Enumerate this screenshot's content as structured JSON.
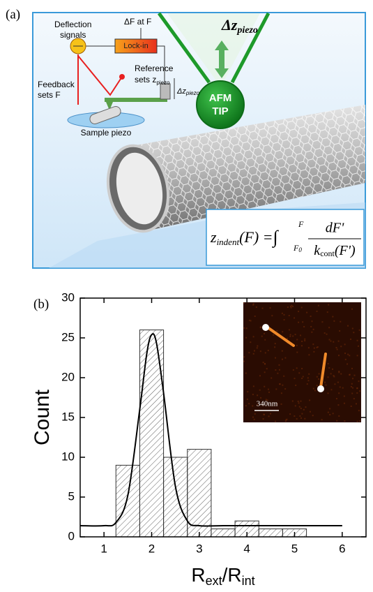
{
  "diagram": {
    "panel_label": "(a)",
    "deflection": [
      "Deflection",
      "signals"
    ],
    "delta_f": "ΔF at F",
    "lockin": "Lock-in",
    "reference": [
      "Reference",
      "sets z",
      "piezo"
    ],
    "feedback": [
      "Feedback",
      "sets F"
    ],
    "small_dz": [
      "Δz",
      "piezo"
    ],
    "sample_piezo": "Sample piezo",
    "big_dz": [
      "Δz",
      "piezo"
    ],
    "tip": [
      "AFM",
      "TIP"
    ],
    "formula": {
      "lhs": "z",
      "lhs_sub": "indent",
      "lhs_arg": "(F) =",
      "integral": "∫",
      "upper": "F",
      "lower": "F",
      "lower_sub": "0",
      "numerator": "dF'",
      "den": "k",
      "den_sub": "cont",
      "den_arg": "(F')"
    }
  },
  "chart_data": {
    "type": "histogram",
    "panel_label": "(b)",
    "bins": [
      1.25,
      1.75,
      2.25,
      2.75,
      3.25,
      3.75,
      4.25,
      4.75,
      5.25
    ],
    "values": [
      9,
      26,
      10,
      11,
      1,
      2,
      1,
      1
    ],
    "fit": {
      "x": [
        0.5,
        1,
        1.25,
        1.5,
        1.75,
        1.9,
        2,
        2.1,
        2.25,
        2.5,
        2.75,
        3,
        3.5,
        4,
        5,
        6
      ],
      "values": [
        1.4,
        1.4,
        1.8,
        5.2,
        16.0,
        23.1,
        25.4,
        24.4,
        18.1,
        6.3,
        2.0,
        1.4,
        1.4,
        1.4,
        1.4,
        1.4
      ]
    },
    "xlim": [
      0.5,
      6.5
    ],
    "ylim": [
      0,
      30
    ],
    "xticks": [
      1,
      2,
      3,
      4,
      5,
      6
    ],
    "yticks": [
      0,
      5,
      10,
      15,
      20,
      25,
      30
    ],
    "y_label": "Count",
    "x_label": [
      "R",
      "ext",
      "/R",
      "int"
    ],
    "inset_scale": "340nm"
  }
}
